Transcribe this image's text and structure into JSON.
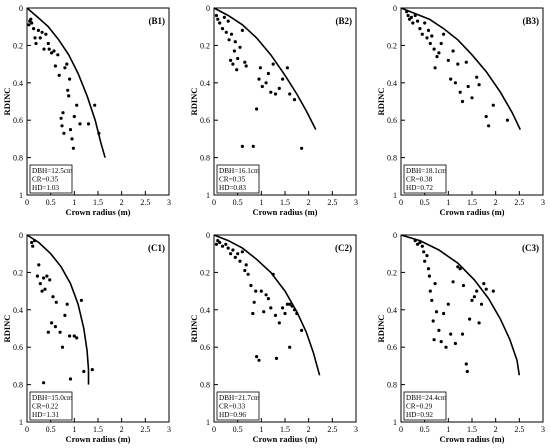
{
  "chart_data": [
    {
      "id": "B1",
      "type": "scatter",
      "panel_label": "(B1)",
      "xlabel": "Crown radius (m)",
      "ylabel": "RDINC",
      "xlim": [
        0,
        3
      ],
      "ylim": [
        0,
        1
      ],
      "y_inverted": true,
      "x_ticks": [
        "0",
        "0.5",
        "1",
        "1.5",
        "2",
        "2.5",
        "3"
      ],
      "y_ticks": [
        "0",
        "0.2",
        "0.4",
        "0.6",
        "0.8",
        "1"
      ],
      "info": [
        "DBH=12.5cm",
        "CR=0.35",
        "HD=1.03"
      ],
      "curve": {
        "x": [
          0,
          0.23,
          0.45,
          0.67,
          0.88,
          1.08,
          1.27,
          1.44,
          1.56,
          1.65
        ],
        "y": [
          0,
          0.05,
          0.1,
          0.17,
          0.25,
          0.35,
          0.47,
          0.6,
          0.72,
          0.8
        ]
      },
      "points": [
        [
          0.04,
          0.09
        ],
        [
          0.06,
          0.07
        ],
        [
          0.08,
          0.06
        ],
        [
          0.1,
          0.08
        ],
        [
          0.14,
          0.11
        ],
        [
          0.17,
          0.16
        ],
        [
          0.19,
          0.19
        ],
        [
          0.24,
          0.12
        ],
        [
          0.28,
          0.16
        ],
        [
          0.32,
          0.13
        ],
        [
          0.36,
          0.22
        ],
        [
          0.4,
          0.14
        ],
        [
          0.45,
          0.19
        ],
        [
          0.47,
          0.22
        ],
        [
          0.52,
          0.24
        ],
        [
          0.57,
          0.23
        ],
        [
          0.6,
          0.31
        ],
        [
          0.65,
          0.25
        ],
        [
          0.68,
          0.36
        ],
        [
          0.72,
          0.59
        ],
        [
          0.74,
          0.63
        ],
        [
          0.76,
          0.56
        ],
        [
          0.78,
          0.67
        ],
        [
          0.8,
          0.32
        ],
        [
          0.84,
          0.3
        ],
        [
          0.86,
          0.44
        ],
        [
          0.88,
          0.47
        ],
        [
          0.9,
          0.38
        ],
        [
          0.92,
          0.65
        ],
        [
          0.95,
          0.7
        ],
        [
          0.98,
          0.75
        ],
        [
          1.0,
          0.58
        ],
        [
          1.05,
          0.52
        ],
        [
          1.12,
          0.62
        ],
        [
          1.3,
          0.62
        ],
        [
          1.43,
          0.52
        ],
        [
          1.52,
          0.67
        ]
      ]
    },
    {
      "id": "B2",
      "type": "scatter",
      "panel_label": "(B2)",
      "xlabel": "Crown radius (m)",
      "ylabel": "RDINC",
      "xlim": [
        0,
        3
      ],
      "ylim": [
        0,
        1
      ],
      "y_inverted": true,
      "x_ticks": [
        "0",
        "0.5",
        "1",
        "1.5",
        "2",
        "2.5",
        "3"
      ],
      "y_ticks": [
        "0",
        "0.2",
        "0.4",
        "0.6",
        "0.8",
        "1"
      ],
      "info": [
        "DBH=16.1cm",
        "CR=0.35",
        "HD=0.83"
      ],
      "curve": {
        "x": [
          0,
          0.3,
          0.6,
          0.9,
          1.2,
          1.5,
          1.75,
          1.95,
          2.15
        ],
        "y": [
          0,
          0.04,
          0.09,
          0.16,
          0.25,
          0.36,
          0.46,
          0.55,
          0.65
        ]
      },
      "points": [
        [
          0.05,
          0.04
        ],
        [
          0.08,
          0.06
        ],
        [
          0.12,
          0.08
        ],
        [
          0.18,
          0.11
        ],
        [
          0.22,
          0.05
        ],
        [
          0.26,
          0.13
        ],
        [
          0.3,
          0.07
        ],
        [
          0.32,
          0.17
        ],
        [
          0.35,
          0.28
        ],
        [
          0.37,
          0.14
        ],
        [
          0.4,
          0.3
        ],
        [
          0.43,
          0.23
        ],
        [
          0.45,
          0.18
        ],
        [
          0.48,
          0.33
        ],
        [
          0.5,
          0.27
        ],
        [
          0.55,
          0.21
        ],
        [
          0.6,
          0.12
        ],
        [
          0.65,
          0.29
        ],
        [
          0.68,
          0.31
        ],
        [
          0.6,
          0.74
        ],
        [
          0.83,
          0.74
        ],
        [
          0.9,
          0.54
        ],
        [
          0.95,
          0.38
        ],
        [
          0.98,
          0.32
        ],
        [
          1.02,
          0.42
        ],
        [
          1.1,
          0.4
        ],
        [
          1.15,
          0.35
        ],
        [
          1.2,
          0.45
        ],
        [
          1.25,
          0.3
        ],
        [
          1.3,
          0.46
        ],
        [
          1.38,
          0.43
        ],
        [
          1.45,
          0.38
        ],
        [
          1.55,
          0.32
        ],
        [
          1.6,
          0.46
        ],
        [
          1.7,
          0.49
        ],
        [
          1.85,
          0.75
        ]
      ]
    },
    {
      "id": "B3",
      "type": "scatter",
      "panel_label": "(B3)",
      "xlabel": "Crown radius (m)",
      "ylabel": "RDINC",
      "xlim": [
        0,
        3
      ],
      "ylim": [
        0,
        1
      ],
      "y_inverted": true,
      "x_ticks": [
        "0",
        "0.5",
        "1",
        "1.5",
        "2",
        "2.5",
        "3"
      ],
      "y_ticks": [
        "0",
        "0.2",
        "0.4",
        "0.6",
        "0.8",
        "1"
      ],
      "info": [
        "DBH=18.1cm",
        "CR=0.38",
        "HD=0.72"
      ],
      "curve": {
        "x": [
          0,
          0.3,
          0.6,
          0.9,
          1.2,
          1.5,
          1.8,
          2.1,
          2.35,
          2.52
        ],
        "y": [
          0,
          0.03,
          0.06,
          0.11,
          0.17,
          0.25,
          0.34,
          0.45,
          0.56,
          0.65
        ]
      },
      "points": [
        [
          0.12,
          0.02
        ],
        [
          0.15,
          0.04
        ],
        [
          0.18,
          0.06
        ],
        [
          0.22,
          0.05
        ],
        [
          0.25,
          0.08
        ],
        [
          0.3,
          0.04
        ],
        [
          0.35,
          0.07
        ],
        [
          0.4,
          0.11
        ],
        [
          0.45,
          0.14
        ],
        [
          0.5,
          0.08
        ],
        [
          0.55,
          0.16
        ],
        [
          0.58,
          0.12
        ],
        [
          0.62,
          0.19
        ],
        [
          0.65,
          0.15
        ],
        [
          0.7,
          0.22
        ],
        [
          0.72,
          0.32
        ],
        [
          0.76,
          0.26
        ],
        [
          0.8,
          0.24
        ],
        [
          0.85,
          0.19
        ],
        [
          0.9,
          0.14
        ],
        [
          1.0,
          0.28
        ],
        [
          1.05,
          0.38
        ],
        [
          1.1,
          0.23
        ],
        [
          1.15,
          0.4
        ],
        [
          1.2,
          0.3
        ],
        [
          1.25,
          0.45
        ],
        [
          1.3,
          0.5
        ],
        [
          1.38,
          0.29
        ],
        [
          1.42,
          0.42
        ],
        [
          1.5,
          0.48
        ],
        [
          1.6,
          0.37
        ],
        [
          1.65,
          0.41
        ],
        [
          1.8,
          0.58
        ],
        [
          1.85,
          0.63
        ],
        [
          1.95,
          0.52
        ],
        [
          2.25,
          0.6
        ]
      ]
    },
    {
      "id": "C1",
      "type": "scatter",
      "panel_label": "(C1)",
      "xlabel": "Crown radius (m)",
      "ylabel": "RDINC",
      "xlim": [
        0,
        3
      ],
      "ylim": [
        0,
        1
      ],
      "y_inverted": true,
      "x_ticks": [
        "0",
        "0.5",
        "1",
        "1.5",
        "2",
        "2.5",
        "3"
      ],
      "y_ticks": [
        "0",
        "0.2",
        "0.4",
        "0.6",
        "0.8",
        "1"
      ],
      "info": [
        "DBH=15.0cm",
        "CR=0.22",
        "HD=1.31"
      ],
      "curve": {
        "x": [
          0,
          0.25,
          0.5,
          0.72,
          0.92,
          1.08,
          1.2,
          1.27,
          1.3,
          1.3
        ],
        "y": [
          0,
          0.04,
          0.1,
          0.17,
          0.26,
          0.37,
          0.5,
          0.62,
          0.72,
          0.8
        ]
      },
      "points": [
        [
          0.1,
          0.04
        ],
        [
          0.12,
          0.06
        ],
        [
          0.16,
          0.03
        ],
        [
          0.22,
          0.22
        ],
        [
          0.25,
          0.16
        ],
        [
          0.28,
          0.26
        ],
        [
          0.32,
          0.3
        ],
        [
          0.35,
          0.23
        ],
        [
          0.38,
          0.29
        ],
        [
          0.42,
          0.22
        ],
        [
          0.45,
          0.52
        ],
        [
          0.48,
          0.24
        ],
        [
          0.52,
          0.47
        ],
        [
          0.55,
          0.33
        ],
        [
          0.6,
          0.49
        ],
        [
          0.62,
          0.36
        ],
        [
          0.7,
          0.52
        ],
        [
          0.75,
          0.6
        ],
        [
          0.8,
          0.43
        ],
        [
          0.85,
          0.37
        ],
        [
          0.9,
          0.54
        ],
        [
          0.92,
          0.77
        ],
        [
          1.0,
          0.54
        ],
        [
          1.05,
          0.55
        ],
        [
          1.15,
          0.35
        ],
        [
          1.2,
          0.73
        ],
        [
          1.38,
          0.72
        ],
        [
          0.35,
          0.79
        ]
      ]
    },
    {
      "id": "C2",
      "type": "scatter",
      "panel_label": "(C2)",
      "xlabel": "Crown radius (m)",
      "ylabel": "RDINC",
      "xlim": [
        0,
        3
      ],
      "ylim": [
        0,
        1
      ],
      "y_inverted": true,
      "x_ticks": [
        "0",
        "0.5",
        "1",
        "1.5",
        "2",
        "2.5",
        "3"
      ],
      "y_ticks": [
        "0",
        "0.2",
        "0.4",
        "0.6",
        "0.8",
        "1"
      ],
      "info": [
        "DBH=21.7cm",
        "CR=0.33",
        "HD=0.96"
      ],
      "curve": {
        "x": [
          0,
          0.3,
          0.6,
          0.9,
          1.2,
          1.5,
          1.75,
          1.95,
          2.1,
          2.23
        ],
        "y": [
          0,
          0.03,
          0.07,
          0.13,
          0.2,
          0.3,
          0.41,
          0.52,
          0.63,
          0.75
        ]
      },
      "points": [
        [
          0.05,
          0.05
        ],
        [
          0.08,
          0.03
        ],
        [
          0.12,
          0.04
        ],
        [
          0.18,
          0.06
        ],
        [
          0.25,
          0.05
        ],
        [
          0.3,
          0.07
        ],
        [
          0.35,
          0.1
        ],
        [
          0.4,
          0.08
        ],
        [
          0.45,
          0.12
        ],
        [
          0.5,
          0.1
        ],
        [
          0.55,
          0.14
        ],
        [
          0.6,
          0.09
        ],
        [
          0.65,
          0.19
        ],
        [
          0.68,
          0.16
        ],
        [
          0.72,
          0.21
        ],
        [
          0.78,
          0.27
        ],
        [
          0.82,
          0.42
        ],
        [
          0.85,
          0.36
        ],
        [
          0.88,
          0.3
        ],
        [
          0.9,
          0.65
        ],
        [
          0.95,
          0.67
        ],
        [
          1.0,
          0.3
        ],
        [
          1.05,
          0.41
        ],
        [
          1.1,
          0.32
        ],
        [
          1.15,
          0.34
        ],
        [
          1.2,
          0.39
        ],
        [
          1.25,
          0.21
        ],
        [
          1.3,
          0.43
        ],
        [
          1.32,
          0.66
        ],
        [
          1.38,
          0.47
        ],
        [
          1.45,
          0.39
        ],
        [
          1.5,
          0.42
        ],
        [
          1.55,
          0.37
        ],
        [
          1.6,
          0.37
        ],
        [
          1.65,
          0.38
        ],
        [
          1.7,
          0.4
        ],
        [
          1.75,
          0.42
        ],
        [
          1.85,
          0.51
        ],
        [
          1.6,
          0.6
        ]
      ]
    },
    {
      "id": "C3",
      "type": "scatter",
      "panel_label": "(C3)",
      "xlabel": "Crown radius (m)",
      "ylabel": "RDINC",
      "xlim": [
        0,
        3
      ],
      "ylim": [
        0,
        1
      ],
      "y_inverted": true,
      "x_ticks": [
        "0",
        "0.5",
        "1",
        "1.5",
        "2",
        "2.5",
        "3"
      ],
      "y_ticks": [
        "0",
        "0.2",
        "0.4",
        "0.6",
        "0.8",
        "1"
      ],
      "info": [
        "DBH=24.4cm",
        "CR=0.29",
        "HD=0.92"
      ],
      "curve": {
        "x": [
          0,
          0.4,
          0.8,
          1.2,
          1.55,
          1.85,
          2.1,
          2.3,
          2.45,
          2.5
        ],
        "y": [
          0,
          0.03,
          0.08,
          0.15,
          0.24,
          0.34,
          0.45,
          0.56,
          0.67,
          0.75
        ]
      },
      "points": [
        [
          0.3,
          0.03
        ],
        [
          0.35,
          0.05
        ],
        [
          0.4,
          0.04
        ],
        [
          0.45,
          0.06
        ],
        [
          0.48,
          0.09
        ],
        [
          0.5,
          0.14
        ],
        [
          0.55,
          0.11
        ],
        [
          0.58,
          0.18
        ],
        [
          0.6,
          0.22
        ],
        [
          0.62,
          0.3
        ],
        [
          0.65,
          0.35
        ],
        [
          0.68,
          0.46
        ],
        [
          0.7,
          0.56
        ],
        [
          0.72,
          0.26
        ],
        [
          0.75,
          0.41
        ],
        [
          0.8,
          0.51
        ],
        [
          0.85,
          0.57
        ],
        [
          0.9,
          0.42
        ],
        [
          0.95,
          0.6
        ],
        [
          1.0,
          0.37
        ],
        [
          1.05,
          0.53
        ],
        [
          1.1,
          0.25
        ],
        [
          1.15,
          0.58
        ],
        [
          1.2,
          0.17
        ],
        [
          1.25,
          0.18
        ],
        [
          1.3,
          0.53
        ],
        [
          1.32,
          0.27
        ],
        [
          1.38,
          0.69
        ],
        [
          1.4,
          0.73
        ],
        [
          1.45,
          0.45
        ],
        [
          1.5,
          0.35
        ],
        [
          1.55,
          0.33
        ],
        [
          1.6,
          0.3
        ],
        [
          1.65,
          0.47
        ],
        [
          1.7,
          0.37
        ],
        [
          1.75,
          0.26
        ],
        [
          1.8,
          0.29
        ],
        [
          1.95,
          0.3
        ]
      ]
    }
  ]
}
